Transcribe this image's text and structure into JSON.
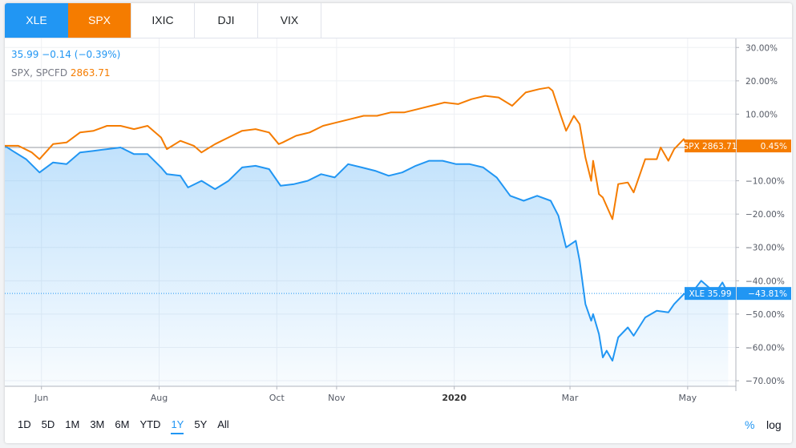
{
  "tabs": [
    {
      "label": "XLE",
      "color": "#2196f3"
    },
    {
      "label": "SPX",
      "color": "#f57c00"
    },
    {
      "label": "IXIC"
    },
    {
      "label": "DJI"
    },
    {
      "label": "VIX"
    }
  ],
  "legend": {
    "xle_line": "35.99 −0.14 (−0.39%)",
    "spx_name": "SPX, SPCFD",
    "spx_value": "2863.71"
  },
  "ranges": [
    "1D",
    "5D",
    "1M",
    "3M",
    "6M",
    "YTD",
    "1Y",
    "5Y",
    "All"
  ],
  "active_range": "1Y",
  "options": {
    "percent": "%",
    "log": "log"
  },
  "chart_data": {
    "type": "line",
    "y_unit": "percent change",
    "ylim": [
      -72,
      33
    ],
    "y_ticks": [
      "30.00%",
      "20.00%",
      "10.00%",
      "0.00%",
      "−10.00%",
      "−20.00%",
      "−30.00%",
      "−40.00%",
      "−50.00%",
      "−60.00%",
      "−70.00%"
    ],
    "x_ticks": [
      "Jun",
      "Aug",
      "Oct",
      "Nov",
      "2020",
      "Mar",
      "May"
    ],
    "x_ticks_bold": [
      "2020"
    ],
    "x_start": "2019-05-13",
    "x_end": "2020-05-26",
    "grid": true,
    "series": [
      {
        "name": "SPX",
        "color": "#f57c00",
        "label": "SPX 2863.71",
        "last_change": "0.45%",
        "points": [
          [
            "2019-05-13",
            0.5
          ],
          [
            "2019-05-20",
            0.5
          ],
          [
            "2019-05-27",
            -1.5
          ],
          [
            "2019-05-31",
            -3.5
          ],
          [
            "2019-06-07",
            1.0
          ],
          [
            "2019-06-14",
            1.5
          ],
          [
            "2019-06-21",
            4.5
          ],
          [
            "2019-06-28",
            5.0
          ],
          [
            "2019-07-05",
            6.5
          ],
          [
            "2019-07-12",
            6.5
          ],
          [
            "2019-07-19",
            5.5
          ],
          [
            "2019-07-26",
            6.5
          ],
          [
            "2019-08-02",
            3.0
          ],
          [
            "2019-08-05",
            -0.5
          ],
          [
            "2019-08-12",
            2.0
          ],
          [
            "2019-08-19",
            0.5
          ],
          [
            "2019-08-23",
            -1.5
          ],
          [
            "2019-08-30",
            1.0
          ],
          [
            "2019-09-06",
            3.0
          ],
          [
            "2019-09-13",
            5.0
          ],
          [
            "2019-09-20",
            5.5
          ],
          [
            "2019-09-27",
            4.5
          ],
          [
            "2019-10-02",
            1.0
          ],
          [
            "2019-10-04",
            1.5
          ],
          [
            "2019-10-11",
            3.5
          ],
          [
            "2019-10-18",
            4.5
          ],
          [
            "2019-10-25",
            6.5
          ],
          [
            "2019-11-01",
            7.5
          ],
          [
            "2019-11-08",
            8.5
          ],
          [
            "2019-11-15",
            9.5
          ],
          [
            "2019-11-22",
            9.5
          ],
          [
            "2019-11-29",
            10.5
          ],
          [
            "2019-12-06",
            10.5
          ],
          [
            "2019-12-13",
            11.5
          ],
          [
            "2019-12-20",
            12.5
          ],
          [
            "2019-12-27",
            13.5
          ],
          [
            "2020-01-03",
            13.0
          ],
          [
            "2020-01-10",
            14.5
          ],
          [
            "2020-01-17",
            15.5
          ],
          [
            "2020-01-24",
            15.0
          ],
          [
            "2020-01-31",
            12.5
          ],
          [
            "2020-02-07",
            16.5
          ],
          [
            "2020-02-14",
            17.5
          ],
          [
            "2020-02-19",
            18.0
          ],
          [
            "2020-02-21",
            17.0
          ],
          [
            "2020-02-25",
            10.0
          ],
          [
            "2020-02-28",
            5.0
          ],
          [
            "2020-03-03",
            9.5
          ],
          [
            "2020-03-06",
            7.0
          ],
          [
            "2020-03-09",
            -3.0
          ],
          [
            "2020-03-12",
            -10.0
          ],
          [
            "2020-03-13",
            -4.0
          ],
          [
            "2020-03-16",
            -14.0
          ],
          [
            "2020-03-18",
            -15.0
          ],
          [
            "2020-03-23",
            -21.5
          ],
          [
            "2020-03-26",
            -11.0
          ],
          [
            "2020-03-31",
            -10.5
          ],
          [
            "2020-04-03",
            -13.5
          ],
          [
            "2020-04-09",
            -3.5
          ],
          [
            "2020-04-15",
            -3.5
          ],
          [
            "2020-04-17",
            0.0
          ],
          [
            "2020-04-21",
            -4.0
          ],
          [
            "2020-04-24",
            -0.5
          ],
          [
            "2020-04-29",
            2.5
          ],
          [
            "2020-05-01",
            0.0
          ],
          [
            "2020-05-08",
            1.5
          ],
          [
            "2020-05-13",
            -0.5
          ],
          [
            "2020-05-19",
            1.5
          ],
          [
            "2020-05-22",
            0.45
          ]
        ]
      },
      {
        "name": "XLE",
        "color": "#2196f3",
        "label": "XLE 35.99",
        "last_change": "−43.81%",
        "points": [
          [
            "2019-05-13",
            0.5
          ],
          [
            "2019-05-17",
            -1.0
          ],
          [
            "2019-05-24",
            -3.5
          ],
          [
            "2019-05-31",
            -7.5
          ],
          [
            "2019-06-07",
            -4.5
          ],
          [
            "2019-06-14",
            -5.0
          ],
          [
            "2019-06-21",
            -1.5
          ],
          [
            "2019-06-28",
            -1.0
          ],
          [
            "2019-07-05",
            -0.5
          ],
          [
            "2019-07-12",
            0.0
          ],
          [
            "2019-07-19",
            -2.0
          ],
          [
            "2019-07-26",
            -2.0
          ],
          [
            "2019-08-02",
            -6.0
          ],
          [
            "2019-08-05",
            -8.0
          ],
          [
            "2019-08-12",
            -8.5
          ],
          [
            "2019-08-16",
            -12.0
          ],
          [
            "2019-08-23",
            -10.0
          ],
          [
            "2019-08-30",
            -12.5
          ],
          [
            "2019-09-06",
            -10.0
          ],
          [
            "2019-09-13",
            -6.0
          ],
          [
            "2019-09-20",
            -5.5
          ],
          [
            "2019-09-27",
            -6.5
          ],
          [
            "2019-10-03",
            -11.5
          ],
          [
            "2019-10-10",
            -11.0
          ],
          [
            "2019-10-17",
            -10.0
          ],
          [
            "2019-10-24",
            -8.0
          ],
          [
            "2019-10-31",
            -9.0
          ],
          [
            "2019-11-07",
            -5.0
          ],
          [
            "2019-11-14",
            -6.0
          ],
          [
            "2019-11-21",
            -7.0
          ],
          [
            "2019-11-28",
            -8.5
          ],
          [
            "2019-12-05",
            -7.5
          ],
          [
            "2019-12-12",
            -5.5
          ],
          [
            "2019-12-19",
            -4.0
          ],
          [
            "2019-12-26",
            -4.0
          ],
          [
            "2020-01-02",
            -5.0
          ],
          [
            "2020-01-09",
            -5.0
          ],
          [
            "2020-01-16",
            -6.0
          ],
          [
            "2020-01-23",
            -9.0
          ],
          [
            "2020-01-30",
            -14.5
          ],
          [
            "2020-02-06",
            -16.0
          ],
          [
            "2020-02-13",
            -14.5
          ],
          [
            "2020-02-20",
            -16.0
          ],
          [
            "2020-02-24",
            -20.5
          ],
          [
            "2020-02-28",
            -30.0
          ],
          [
            "2020-03-04",
            -28.0
          ],
          [
            "2020-03-06",
            -34.0
          ],
          [
            "2020-03-09",
            -47.0
          ],
          [
            "2020-03-12",
            -52.0
          ],
          [
            "2020-03-13",
            -50.0
          ],
          [
            "2020-03-16",
            -56.0
          ],
          [
            "2020-03-18",
            -63.0
          ],
          [
            "2020-03-20",
            -61.0
          ],
          [
            "2020-03-23",
            -64.0
          ],
          [
            "2020-03-26",
            -57.0
          ],
          [
            "2020-03-31",
            -54.0
          ],
          [
            "2020-04-03",
            -56.5
          ],
          [
            "2020-04-09",
            -51.0
          ],
          [
            "2020-04-15",
            -49.0
          ],
          [
            "2020-04-21",
            -49.5
          ],
          [
            "2020-04-24",
            -47.0
          ],
          [
            "2020-04-29",
            -44.0
          ],
          [
            "2020-05-04",
            -43.0
          ],
          [
            "2020-05-08",
            -40.0
          ],
          [
            "2020-05-12",
            -42.0
          ],
          [
            "2020-05-15",
            -44.0
          ],
          [
            "2020-05-19",
            -40.5
          ],
          [
            "2020-05-22",
            -43.81
          ]
        ]
      }
    ]
  }
}
